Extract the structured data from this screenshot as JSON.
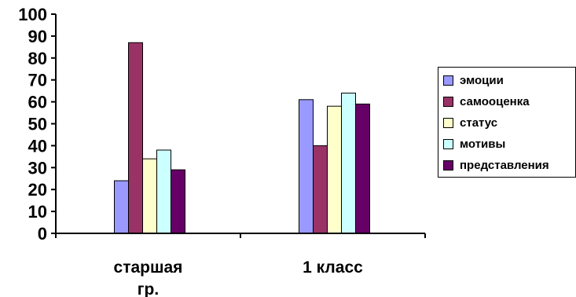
{
  "chart_data": {
    "type": "bar",
    "categories": [
      "старшая гр.",
      "1 класс"
    ],
    "category_lines": [
      [
        "старшая",
        "гр."
      ],
      [
        "1 класс"
      ]
    ],
    "series": [
      {
        "name": "эмоции",
        "values": [
          24,
          61
        ],
        "color": "#9999ff"
      },
      {
        "name": "самооценка",
        "values": [
          87,
          40
        ],
        "color": "#993366"
      },
      {
        "name": "статус",
        "values": [
          34,
          58
        ],
        "color": "#ffffcc"
      },
      {
        "name": "мотивы",
        "values": [
          38,
          64
        ],
        "color": "#ccffff"
      },
      {
        "name": "представления",
        "values": [
          29,
          59
        ],
        "color": "#660066"
      }
    ],
    "yticks": [
      "0",
      "10",
      "20",
      "30",
      "40",
      "50",
      "60",
      "70",
      "80",
      "90",
      "100"
    ],
    "ylim": [
      0,
      100
    ],
    "grid": false,
    "legend_position": "right"
  }
}
